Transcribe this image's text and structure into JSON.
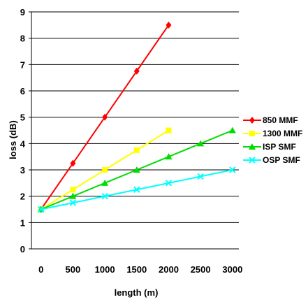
{
  "chart_data": {
    "type": "line",
    "xlabel": "length (m)",
    "ylabel": "loss (dB)",
    "x_ticks": [
      0,
      500,
      1000,
      1500,
      2000,
      2500,
      3000
    ],
    "y_ticks": [
      0,
      1,
      2,
      3,
      4,
      5,
      6,
      7,
      8,
      9
    ],
    "xlim": [
      -150,
      3100
    ],
    "ylim": [
      0,
      9
    ],
    "grid": "horizontal",
    "legend": "right",
    "series": [
      {
        "name": "850 MMF",
        "color": "#ff0000",
        "marker": "diamond",
        "x": [
          0,
          500,
          1000,
          1500,
          2000
        ],
        "y": [
          1.5,
          3.25,
          5.0,
          6.75,
          8.5
        ]
      },
      {
        "name": "1300 MMF",
        "color": "#ffff00",
        "marker": "square",
        "x": [
          0,
          500,
          1000,
          1500,
          2000
        ],
        "y": [
          1.5,
          2.25,
          3.0,
          3.75,
          4.5
        ]
      },
      {
        "name": "ISP SMF",
        "color": "#00dd00",
        "marker": "triangle",
        "x": [
          0,
          500,
          1000,
          1500,
          2000,
          2500,
          3000
        ],
        "y": [
          1.5,
          2.0,
          2.5,
          3.0,
          3.5,
          4.0,
          4.5
        ]
      },
      {
        "name": "OSP SMF",
        "color": "#00ffff",
        "marker": "x",
        "x": [
          0,
          500,
          1000,
          1500,
          2000,
          2500,
          3000
        ],
        "y": [
          1.5,
          1.75,
          2.0,
          2.25,
          2.5,
          2.75,
          3.0
        ]
      }
    ]
  }
}
